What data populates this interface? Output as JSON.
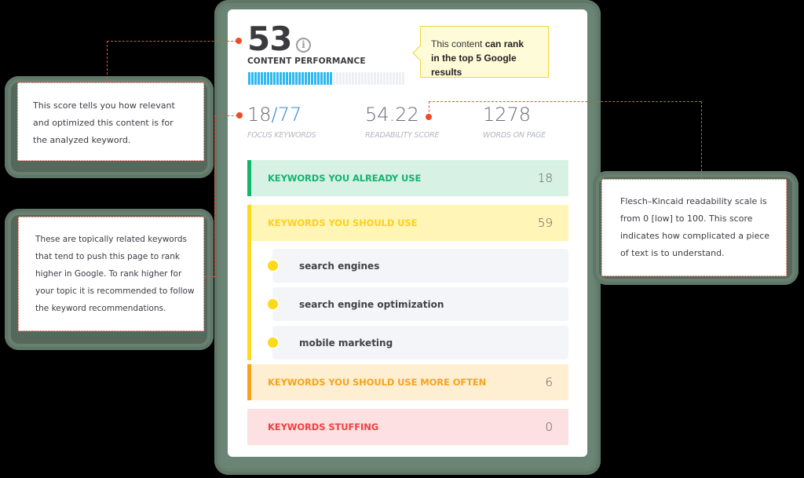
{
  "score": {
    "value": "53",
    "label": "CONTENT PERFORMANCE",
    "info_icon": "info-icon",
    "progress_percent": 53,
    "progress_segments_total": 50,
    "progress_segments_filled": 27,
    "progress_color": "#2db8ef"
  },
  "rank_bubble": {
    "text_plain": "This content ",
    "text_bold_1": "can rank",
    "text_bold_2": "in the top 5 Google results"
  },
  "stats": [
    {
      "value_main": "18",
      "value_accent": "/77",
      "label": "FOCUS KEYWORDS"
    },
    {
      "value_main": "54.22",
      "value_accent": "",
      "label": "READABILITY SCORE"
    },
    {
      "value_main": "1278",
      "value_accent": "",
      "label": "WORDS ON PAGE"
    }
  ],
  "sections": [
    {
      "title": "KEYWORDS YOU ALREADY USE",
      "count": "18",
      "color": "#12b56e"
    },
    {
      "title": "KEYWORDS YOU SHOULD USE",
      "count": "59",
      "color": "#fcd91b"
    },
    {
      "title": "KEYWORDS YOU SHOULD USE MORE OFTEN",
      "count": "6",
      "color": "#f7a21b"
    },
    {
      "title": "KEYWORDS STUFFING",
      "count": "0",
      "color": "#ee4141"
    }
  ],
  "suggested_keywords": [
    {
      "label": "search engines"
    },
    {
      "label": "search engine optimization"
    },
    {
      "label": "mobile marketing"
    }
  ],
  "tooltips": {
    "score": "This score tells you how relevant and optimized this content is for the analyzed keyword.",
    "keywords": "These are topically related keywords that tend to push this page to rank higher in Google. To rank higher for your topic it is recommended to follow the keyword recommendations.",
    "readability": "Flesch–Kincaid readability scale is from 0 [low] to 100. This score indicates how complicated a piece of text is to understand."
  },
  "tooltip_lines": {
    "score": [
      "This score tells you how relevant",
      "and optimized this content is for",
      "the analyzed keyword."
    ],
    "keywords": [
      "These are topically related keywords",
      "that tend to push this page to rank",
      "higher in Google. To rank higher for",
      "your topic it is recommended to follow",
      "the keyword recommendations."
    ],
    "readability": [
      "Flesch–Kincaid readability scale is",
      "from 0 [low] to 100. This score",
      "indicates how complicated a piece",
      "of text is to understand."
    ]
  },
  "colors": {
    "accent_connector": "#e8533b",
    "focus_accent": "#2f86d8",
    "frame": "#6a8475"
  }
}
